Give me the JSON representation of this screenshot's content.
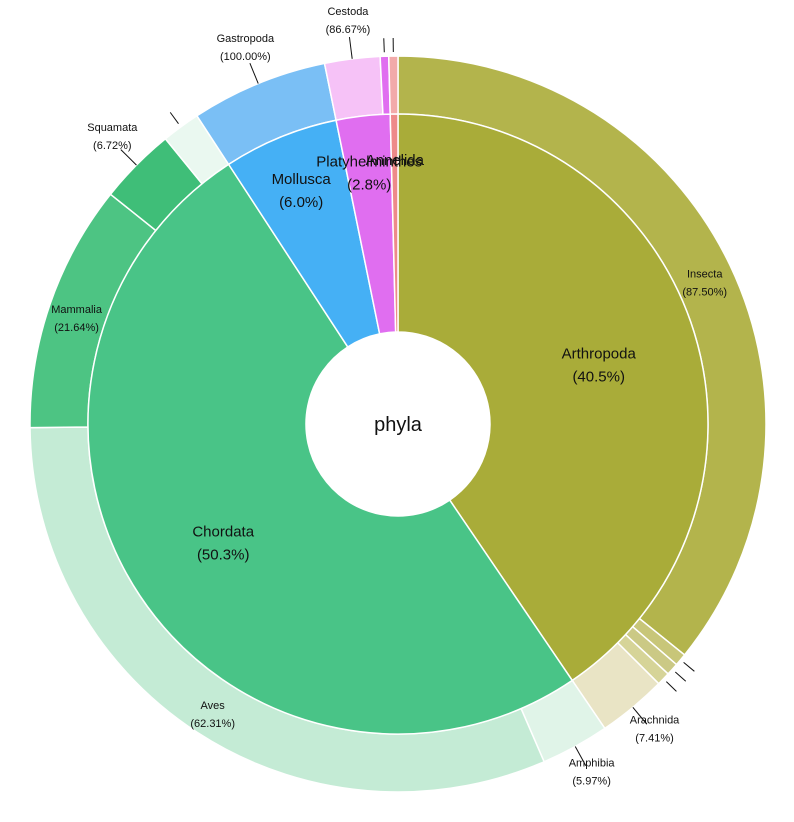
{
  "chart_data": {
    "type": "sunburst",
    "center_label": "phyla",
    "inner": [
      {
        "name": "Arthropoda",
        "value": 40.5,
        "pct_text": "(40.5%)",
        "color": "#a9ac39"
      },
      {
        "name": "Chordata",
        "value": 50.3,
        "pct_text": "(50.3%)",
        "color": "#49c487"
      },
      {
        "name": "Mollusca",
        "value": 6.0,
        "pct_text": "(6.0%)",
        "color": "#45b0f5"
      },
      {
        "name": "Platyhelminthes",
        "value": 2.8,
        "pct_text": "(2.8%)",
        "color": "#e06ef0"
      },
      {
        "name": "Annelida",
        "value": 0.4,
        "pct_text": "",
        "color": "#ee8a8a"
      }
    ],
    "inner_label_order": [
      "Arthropoda",
      "Chordata",
      "Mollusca",
      "Platyhelminthes",
      "Annelida"
    ],
    "outer": [
      {
        "parent": "Arthropoda",
        "name": "Insecta",
        "value": 87.5,
        "pct_text": "(87.50%)",
        "color": "#b3b44c"
      },
      {
        "parent": "Arthropoda",
        "name": "",
        "value": 1.33,
        "pct_text": "",
        "color": "#c8c679"
      },
      {
        "parent": "Arthropoda",
        "name": "",
        "value": 1.33,
        "pct_text": "",
        "color": "#cbc985"
      },
      {
        "parent": "Arthropoda",
        "name": "",
        "value": 1.43,
        "pct_text": "",
        "color": "#d6d498"
      },
      {
        "parent": "Arthropoda",
        "name": "Arachnida",
        "value": 7.41,
        "pct_text": "(7.41%)",
        "color": "#e9e4c5"
      },
      {
        "parent": "Chordata",
        "name": "Amphibia",
        "value": 5.97,
        "pct_text": "(5.97%)",
        "color": "#e0f4e8"
      },
      {
        "parent": "Chordata",
        "name": "Aves",
        "value": 62.31,
        "pct_text": "(62.31%)",
        "color": "#c4ebd5"
      },
      {
        "parent": "Chordata",
        "name": "Mammalia",
        "value": 21.64,
        "pct_text": "(21.64%)",
        "color": "#4dc483"
      },
      {
        "parent": "Chordata",
        "name": "Squamata",
        "value": 6.72,
        "pct_text": "(6.72%)",
        "color": "#3fbe78"
      },
      {
        "parent": "Chordata",
        "name": "",
        "value": 3.36,
        "pct_text": "",
        "color": "#eaf8f0"
      },
      {
        "parent": "Mollusca",
        "name": "Gastropoda",
        "value": 100.0,
        "pct_text": "(100.00%)",
        "color": "#7abff5"
      },
      {
        "parent": "Platyhelminthes",
        "name": "Cestoda",
        "value": 86.67,
        "pct_text": "(86.67%)",
        "color": "#f6c2f7"
      },
      {
        "parent": "Platyhelminthes",
        "name": "",
        "value": 13.33,
        "pct_text": "",
        "color": "#e06ef0"
      },
      {
        "parent": "Annelida",
        "name": "",
        "value": 100.0,
        "pct_text": "",
        "color": "#f2aaaa"
      }
    ]
  }
}
